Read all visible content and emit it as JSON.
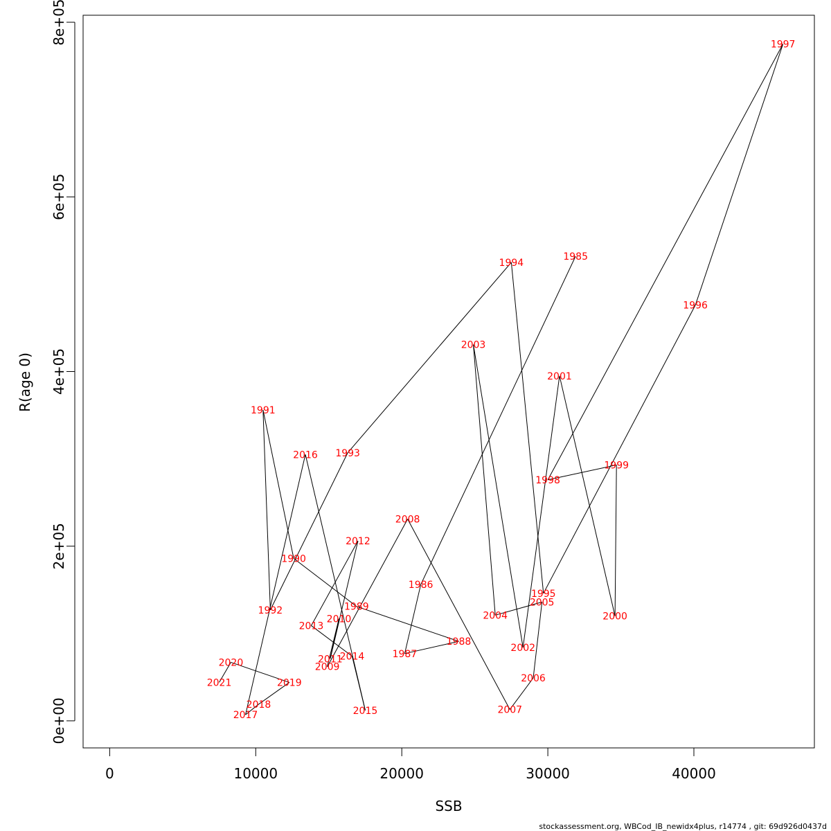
{
  "chart_data": {
    "type": "line",
    "xlabel": "SSB",
    "ylabel": "R(age 0)",
    "xlim": [
      -1820,
      48250
    ],
    "ylim": [
      -31000,
      808000
    ],
    "xticks": [
      0,
      10000,
      20000,
      30000,
      40000
    ],
    "xtick_labels": [
      "0",
      "10000",
      "20000",
      "30000",
      "40000"
    ],
    "yticks": [
      0,
      200000,
      400000,
      600000,
      800000
    ],
    "ytick_labels": [
      "0e+00",
      "2e+05",
      "4e+05",
      "6e+05",
      "8e+05"
    ],
    "line_color": "#000000",
    "label_color": "#ff0000",
    "points": [
      {
        "year": "1985",
        "x": 31900,
        "y": 532000
      },
      {
        "year": "1986",
        "x": 21300,
        "y": 156000
      },
      {
        "year": "1987",
        "x": 20200,
        "y": 77000
      },
      {
        "year": "1988",
        "x": 23900,
        "y": 91000
      },
      {
        "year": "1989",
        "x": 16900,
        "y": 131000
      },
      {
        "year": "1990",
        "x": 12600,
        "y": 186000
      },
      {
        "year": "1991",
        "x": 10500,
        "y": 356000
      },
      {
        "year": "1992",
        "x": 11000,
        "y": 127000
      },
      {
        "year": "1993",
        "x": 16300,
        "y": 307000
      },
      {
        "year": "1994",
        "x": 27500,
        "y": 525000
      },
      {
        "year": "1995",
        "x": 29700,
        "y": 146000
      },
      {
        "year": "1996",
        "x": 40100,
        "y": 476000
      },
      {
        "year": "1997",
        "x": 46100,
        "y": 775000
      },
      {
        "year": "1998",
        "x": 30000,
        "y": 276000
      },
      {
        "year": "1999",
        "x": 34700,
        "y": 293000
      },
      {
        "year": "2000",
        "x": 34600,
        "y": 120000
      },
      {
        "year": "2001",
        "x": 30800,
        "y": 395000
      },
      {
        "year": "2002",
        "x": 28300,
        "y": 84000
      },
      {
        "year": "2003",
        "x": 24900,
        "y": 431000
      },
      {
        "year": "2004",
        "x": 26400,
        "y": 121000
      },
      {
        "year": "2005",
        "x": 29600,
        "y": 136000
      },
      {
        "year": "2006",
        "x": 29000,
        "y": 49000
      },
      {
        "year": "2007",
        "x": 27400,
        "y": 13000
      },
      {
        "year": "2008",
        "x": 20400,
        "y": 231000
      },
      {
        "year": "2009",
        "x": 14900,
        "y": 62000
      },
      {
        "year": "2010",
        "x": 15700,
        "y": 117000
      },
      {
        "year": "2011",
        "x": 15100,
        "y": 71000
      },
      {
        "year": "2012",
        "x": 17000,
        "y": 206000
      },
      {
        "year": "2013",
        "x": 13800,
        "y": 109000
      },
      {
        "year": "2014",
        "x": 16600,
        "y": 74000
      },
      {
        "year": "2015",
        "x": 17500,
        "y": 12000
      },
      {
        "year": "2016",
        "x": 13400,
        "y": 305000
      },
      {
        "year": "2017",
        "x": 9300,
        "y": 7000
      },
      {
        "year": "2018",
        "x": 10200,
        "y": 19000
      },
      {
        "year": "2019",
        "x": 12300,
        "y": 44000
      },
      {
        "year": "2020",
        "x": 8300,
        "y": 67000
      },
      {
        "year": "2021",
        "x": 7500,
        "y": 44000
      }
    ]
  },
  "footer_text": "stockassessment.org, WBCod_IB_newidx4plus, r14774 , git: 69d926d0437d"
}
